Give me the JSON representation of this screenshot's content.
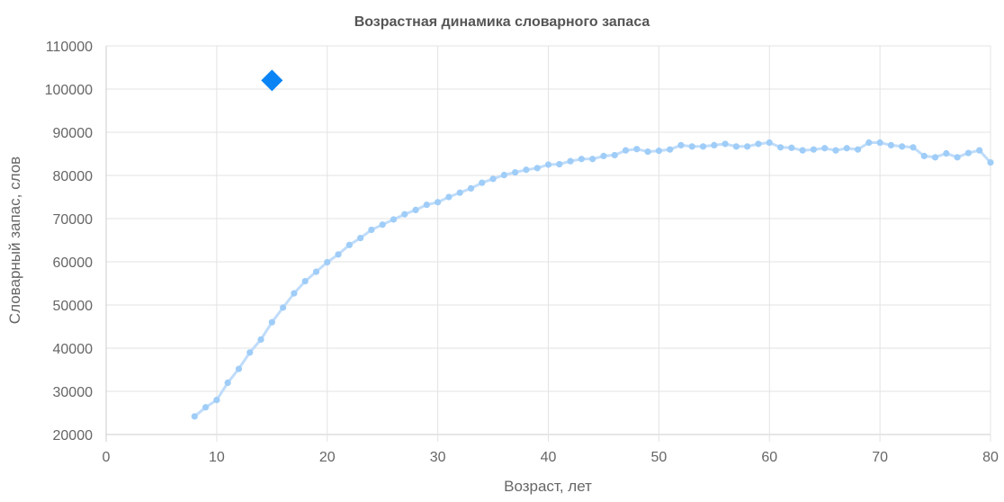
{
  "chart_data": {
    "type": "line",
    "title": "Возрастная динамика словарного запаса",
    "xlabel": "Возраст, лет",
    "ylabel": "Словарный запас, слов",
    "xlim": [
      0,
      80
    ],
    "ylim": [
      20000,
      110000
    ],
    "x_ticks": [
      "0",
      "10",
      "20",
      "30",
      "40",
      "50",
      "60",
      "70",
      "80"
    ],
    "y_ticks": [
      "20000",
      "30000",
      "40000",
      "50000",
      "60000",
      "70000",
      "80000",
      "90000",
      "100000",
      "110000"
    ],
    "grid": true,
    "legend": "none",
    "series": [
      {
        "line_color": "#bfdcfa",
        "point_color": "#9fcdf8",
        "x": [
          8,
          9,
          10,
          11,
          12,
          13,
          14,
          15,
          16,
          17,
          18,
          19,
          20,
          21,
          22,
          23,
          24,
          25,
          26,
          27,
          28,
          29,
          30,
          31,
          32,
          33,
          34,
          35,
          36,
          37,
          38,
          39,
          40,
          41,
          42,
          43,
          44,
          45,
          46,
          47,
          48,
          49,
          50,
          51,
          52,
          53,
          54,
          55,
          56,
          57,
          58,
          59,
          60,
          61,
          62,
          63,
          64,
          65,
          66,
          67,
          68,
          69,
          70,
          71,
          72,
          73,
          74,
          75,
          76,
          77,
          78,
          79,
          80
        ],
        "values": [
          24200,
          26300,
          28000,
          32000,
          35200,
          39000,
          42000,
          46000,
          49400,
          52700,
          55500,
          57700,
          59900,
          61700,
          63900,
          65500,
          67400,
          68600,
          69800,
          71000,
          72000,
          73200,
          73800,
          75000,
          76000,
          77000,
          78300,
          79200,
          80100,
          80700,
          81300,
          81700,
          82500,
          82600,
          83300,
          83800,
          83800,
          84500,
          84700,
          85800,
          86100,
          85500,
          85700,
          86000,
          87000,
          86700,
          86700,
          87000,
          87300,
          86700,
          86700,
          87300,
          87600,
          86500,
          86400,
          85800,
          86000,
          86300,
          85800,
          86300,
          86000,
          87600,
          87600,
          87000,
          86700,
          86500,
          84500,
          84200,
          85100,
          84200,
          85200,
          85800,
          83000
        ]
      },
      {
        "type": "scatter",
        "marker": "diamond",
        "point_color": "#0a84f5",
        "x": [
          15
        ],
        "values": [
          102000
        ]
      }
    ]
  }
}
